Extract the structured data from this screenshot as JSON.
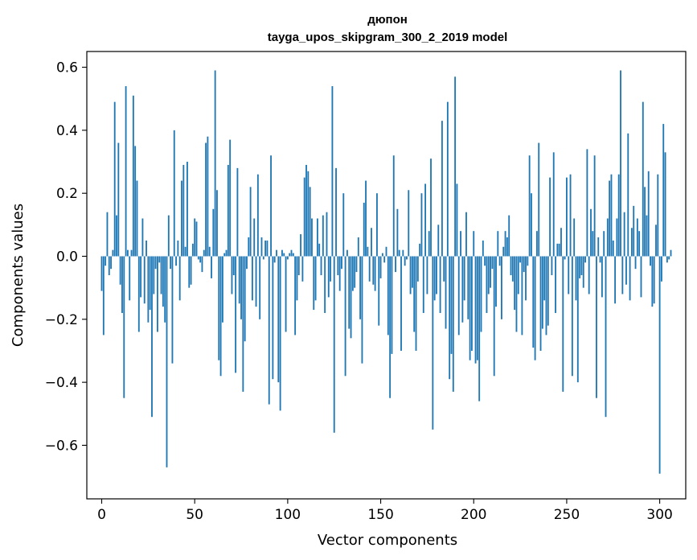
{
  "chart_data": {
    "type": "bar",
    "title": "дюпон",
    "subtitle": "tayga_upos_skipgram_300_2_2019 model",
    "xlabel": "Vector components",
    "ylabel": "Components values",
    "xlim": [
      -8,
      314
    ],
    "ylim": [
      -0.77,
      0.65
    ],
    "x_ticks": [
      0,
      50,
      100,
      150,
      200,
      250,
      300
    ],
    "y_ticks": [
      -0.6,
      -0.4,
      -0.2,
      0.0,
      0.2,
      0.4,
      0.6
    ],
    "x_tick_labels": [
      "0",
      "50",
      "100",
      "150",
      "200",
      "250",
      "300"
    ],
    "y_tick_labels": [
      "−0.6",
      "−0.4",
      "−0.2",
      "0.0",
      "0.2",
      "0.4",
      "0.6"
    ],
    "bar_color": "#1f77b4",
    "values": [
      -0.11,
      -0.25,
      -0.03,
      0.14,
      -0.06,
      -0.04,
      0.02,
      0.49,
      0.13,
      0.36,
      -0.09,
      -0.18,
      -0.45,
      0.54,
      0.02,
      -0.14,
      0.02,
      0.51,
      0.35,
      0.24,
      -0.24,
      -0.13,
      0.12,
      -0.15,
      0.05,
      -0.21,
      -0.17,
      -0.51,
      -0.12,
      -0.04,
      -0.24,
      -0.02,
      -0.12,
      -0.16,
      -0.21,
      -0.67,
      0.13,
      -0.04,
      -0.34,
      0.4,
      -0.03,
      0.05,
      -0.14,
      0.24,
      0.29,
      0.03,
      0.3,
      -0.1,
      -0.09,
      0.04,
      0.12,
      0.11,
      -0.01,
      -0.02,
      -0.05,
      0.02,
      0.36,
      0.38,
      0.03,
      -0.07,
      0.15,
      0.59,
      0.21,
      -0.33,
      -0.38,
      -0.21,
      0.01,
      0.02,
      0.29,
      0.37,
      -0.12,
      -0.06,
      -0.37,
      0.28,
      -0.15,
      -0.2,
      -0.43,
      -0.27,
      -0.04,
      0.06,
      0.22,
      -0.14,
      0.12,
      -0.16,
      0.26,
      -0.2,
      0.06,
      -0.01,
      0.05,
      0.05,
      -0.47,
      0.32,
      -0.39,
      -0.02,
      0.02,
      -0.4,
      -0.49,
      0.02,
      0.01,
      -0.24,
      -0.01,
      0.01,
      0.02,
      0.01,
      -0.25,
      -0.14,
      -0.06,
      0.07,
      -0.08,
      0.25,
      0.29,
      0.27,
      0.22,
      0.12,
      -0.17,
      -0.14,
      0.12,
      0.04,
      -0.06,
      0.13,
      -0.18,
      0.14,
      -0.13,
      -0.08,
      0.54,
      -0.56,
      0.28,
      -0.06,
      -0.11,
      -0.04,
      0.2,
      -0.38,
      0.02,
      -0.23,
      -0.26,
      -0.11,
      -0.1,
      -0.05,
      0.06,
      -0.2,
      -0.34,
      0.17,
      0.24,
      0.03,
      -0.08,
      0.09,
      -0.09,
      -0.11,
      0.2,
      -0.22,
      -0.07,
      0.01,
      -0.02,
      0.03,
      -0.25,
      -0.45,
      -0.31,
      0.32,
      -0.05,
      0.15,
      0.02,
      -0.3,
      0.02,
      -0.03,
      -0.01,
      0.21,
      -0.12,
      -0.1,
      -0.24,
      -0.3,
      -0.08,
      0.04,
      0.2,
      -0.18,
      0.23,
      -0.12,
      0.08,
      0.31,
      -0.55,
      -0.14,
      -0.12,
      0.1,
      -0.18,
      0.43,
      -0.08,
      -0.23,
      0.49,
      -0.39,
      -0.31,
      -0.43,
      0.57,
      0.23,
      -0.25,
      0.08,
      -0.21,
      -0.14,
      0.14,
      -0.2,
      -0.33,
      -0.3,
      0.08,
      -0.34,
      -0.33,
      -0.46,
      -0.24,
      0.05,
      -0.03,
      -0.18,
      -0.12,
      -0.1,
      -0.04,
      -0.38,
      -0.16,
      0.08,
      -0.03,
      -0.2,
      0.03,
      0.08,
      0.06,
      0.13,
      -0.06,
      -0.08,
      -0.17,
      -0.24,
      -0.12,
      -0.02,
      -0.25,
      -0.05,
      -0.14,
      -0.03,
      0.32,
      0.2,
      -0.29,
      -0.33,
      0.08,
      0.36,
      -0.3,
      -0.23,
      -0.14,
      -0.25,
      -0.22,
      0.25,
      -0.06,
      0.33,
      -0.18,
      0.04,
      0.04,
      0.09,
      -0.43,
      -0.01,
      0.25,
      -0.12,
      0.26,
      -0.38,
      0.12,
      -0.14,
      -0.4,
      -0.07,
      -0.06,
      -0.1,
      -0.02,
      0.34,
      -0.12,
      0.15,
      0.08,
      0.32,
      -0.45,
      0.06,
      -0.02,
      -0.13,
      0.08,
      -0.51,
      0.12,
      0.24,
      0.26,
      0.05,
      -0.15,
      0.12,
      0.26,
      0.59,
      -0.12,
      0.14,
      -0.09,
      0.39,
      -0.14,
      0.09,
      0.16,
      -0.04,
      0.12,
      0.08,
      -0.13,
      0.49,
      0.22,
      0.13,
      0.27,
      -0.03,
      -0.16,
      -0.15,
      0.1,
      0.26,
      -0.69,
      -0.08,
      0.42,
      0.33,
      -0.02,
      -0.01,
      0.02
    ]
  }
}
